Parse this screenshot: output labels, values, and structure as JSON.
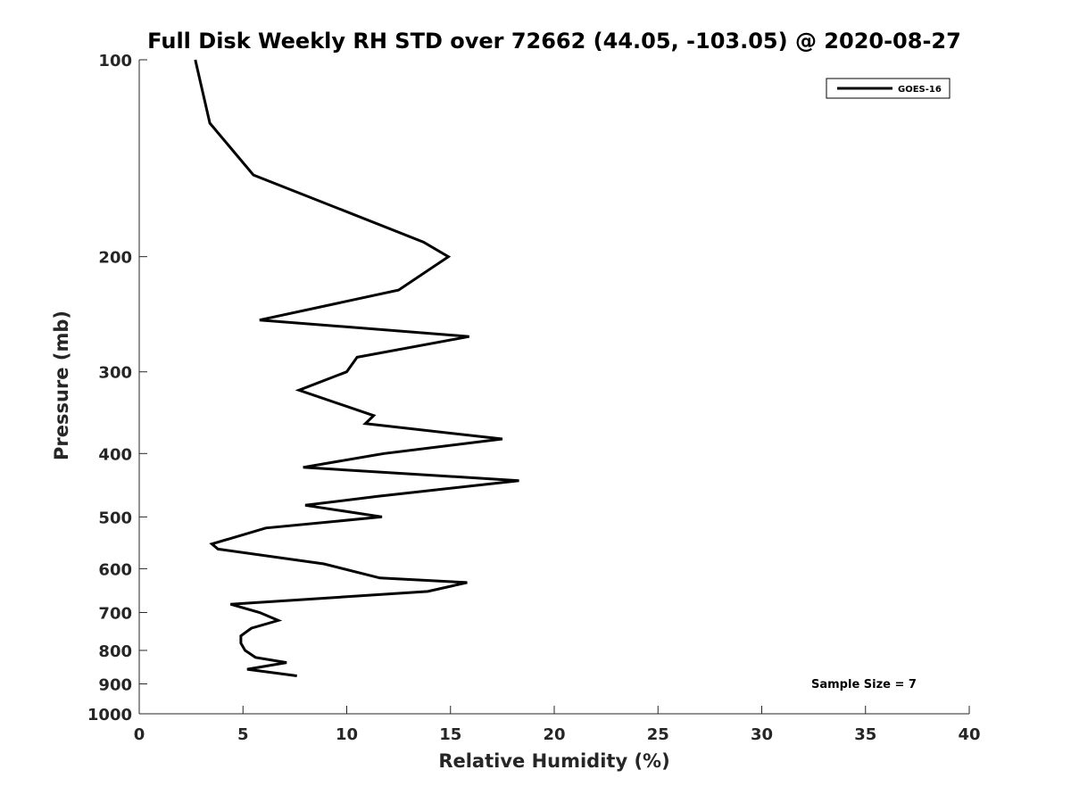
{
  "chart_data": {
    "type": "line",
    "title": "Full Disk Weekly RH STD over 72662 (44.05, -103.05) @ 2020-08-27",
    "xlabel": "Relative Humidity (%)",
    "ylabel": "Pressure (mb)",
    "xlim": [
      0,
      40
    ],
    "ylim": [
      1000,
      100
    ],
    "yscale": "log",
    "x_ticks": [
      0,
      5,
      10,
      15,
      20,
      25,
      30,
      35,
      40
    ],
    "y_ticks": [
      100,
      200,
      300,
      400,
      500,
      600,
      700,
      800,
      900,
      1000
    ],
    "grid": false,
    "legend_position": "top-right",
    "series": [
      {
        "name": "GOES-16",
        "color": "#000000",
        "points": [
          [
            2.7,
            100
          ],
          [
            3.4,
            125
          ],
          [
            5.5,
            150
          ],
          [
            13.7,
            190
          ],
          [
            14.9,
            200
          ],
          [
            12.5,
            225
          ],
          [
            5.8,
            250
          ],
          [
            15.9,
            265
          ],
          [
            10.5,
            285
          ],
          [
            10.0,
            300
          ],
          [
            7.7,
            320
          ],
          [
            11.3,
            350
          ],
          [
            10.9,
            360
          ],
          [
            17.5,
            380
          ],
          [
            11.8,
            400
          ],
          [
            7.9,
            420
          ],
          [
            18.3,
            440
          ],
          [
            11.5,
            465
          ],
          [
            8.0,
            480
          ],
          [
            11.7,
            500
          ],
          [
            6.1,
            520
          ],
          [
            3.5,
            550
          ],
          [
            3.8,
            560
          ],
          [
            8.9,
            590
          ],
          [
            11.6,
            620
          ],
          [
            15.8,
            630
          ],
          [
            13.9,
            650
          ],
          [
            4.4,
            680
          ],
          [
            5.8,
            700
          ],
          [
            6.7,
            720
          ],
          [
            5.4,
            740
          ],
          [
            4.9,
            760
          ],
          [
            4.9,
            780
          ],
          [
            5.1,
            800
          ],
          [
            5.6,
            820
          ],
          [
            7.1,
            835
          ],
          [
            5.2,
            855
          ],
          [
            7.6,
            875
          ]
        ]
      }
    ],
    "annotations": [
      "Sample Size = 7"
    ]
  }
}
